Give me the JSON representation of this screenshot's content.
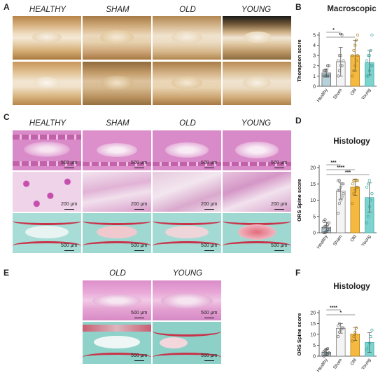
{
  "figure": {
    "panel_labels": {
      "a": "A",
      "b": "B",
      "c": "C",
      "d": "D",
      "e": "E",
      "f": "F"
    },
    "panel_a": {
      "groups": [
        "HEALTHY",
        "SHAM",
        "OLD",
        "YOUNG"
      ]
    },
    "panel_c": {
      "groups": [
        "HEALTHY",
        "SHAM",
        "OLD",
        "YOUNG"
      ],
      "scalebars_row1": [
        "500 μm",
        "500 μm",
        "500 μm",
        "500 μm"
      ],
      "scalebars_row2": [
        "200 μm",
        "200 μm",
        "200 μm",
        "200 μm"
      ],
      "scalebars_row3": [
        "500 μm",
        "500 μm",
        "500 μm",
        "500 μm"
      ]
    },
    "panel_e": {
      "groups": [
        "OLD",
        "YOUNG"
      ],
      "scalebars_row1": [
        "500 μm",
        "500 μm"
      ],
      "scalebars_row2": [
        "500 μm",
        "500 μm"
      ]
    },
    "colors": {
      "healthy": "#a9c9d4",
      "sham": "#f4f4f4",
      "old": "#f5b940",
      "young": "#7fd3cf",
      "he_pink": "#d986c6",
      "safranin_red": "#c8334a",
      "fast_green": "#7ccbc0"
    }
  },
  "chart_data": [
    {
      "type": "bar",
      "title": "Macroscopic",
      "ylabel": "Thompson score",
      "categories": [
        "Healthy",
        "Sham",
        "Old",
        "Young"
      ],
      "values": [
        1.3,
        2.4,
        3.0,
        2.3
      ],
      "errors": [
        0.4,
        1.4,
        1.5,
        1.2
      ],
      "ylim": [
        0,
        5
      ],
      "yticks": [
        0,
        1,
        2,
        3,
        4,
        5
      ],
      "significance": [
        {
          "from": "Healthy",
          "to": "Sham",
          "label": "*"
        },
        {
          "from": "Healthy",
          "to": "Old",
          "label": "**"
        }
      ],
      "points": [
        [
          1,
          1,
          1,
          1,
          1,
          1.5,
          1.5,
          1.5,
          2,
          2
        ],
        [
          1,
          1.5,
          2,
          2,
          2.5,
          2.5,
          3,
          3,
          5
        ],
        [
          1,
          1.5,
          2,
          2.5,
          3,
          3,
          3.5,
          4,
          4.5,
          5
        ],
        [
          1,
          1,
          1.5,
          2,
          2,
          2.5,
          3,
          3,
          3.5,
          5
        ]
      ]
    },
    {
      "type": "bar",
      "title": "Histology",
      "ylabel": "ORS Spine score",
      "categories": [
        "Healthy",
        "Sham",
        "Old",
        "Young"
      ],
      "values": [
        1.7,
        12.8,
        14.0,
        10.8
      ],
      "errors": [
        1.5,
        2.5,
        2.5,
        4.5
      ],
      "ylim": [
        0,
        20
      ],
      "yticks": [
        0,
        5,
        10,
        15,
        20
      ],
      "significance": [
        {
          "from": "Healthy",
          "to": "Sham",
          "label": "***"
        },
        {
          "from": "Healthy",
          "to": "Old",
          "label": "****"
        },
        {
          "from": "Healthy",
          "to": "Young",
          "label": "***"
        }
      ],
      "points": [
        [
          0,
          0,
          0.5,
          1,
          1,
          1.5,
          2,
          2,
          2.5,
          3,
          3.5,
          4
        ],
        [
          6,
          9,
          10,
          11,
          12,
          13,
          13,
          14,
          15,
          15,
          16,
          16
        ],
        [
          9,
          12,
          13,
          14,
          14,
          15,
          16,
          16,
          16,
          16
        ],
        [
          3,
          5,
          8,
          10,
          12,
          14,
          15,
          16
        ]
      ]
    },
    {
      "type": "bar",
      "title": "Histology",
      "ylabel": "ORS Spine score",
      "categories": [
        "Healthy",
        "Sham",
        "Old",
        "Young"
      ],
      "values": [
        1.8,
        12.8,
        10.2,
        6.3
      ],
      "errors": [
        1.5,
        2.2,
        3.0,
        4.5
      ],
      "ylim": [
        0,
        20
      ],
      "yticks": [
        0,
        5,
        10,
        15,
        20
      ],
      "significance": [
        {
          "from": "Healthy",
          "to": "Sham",
          "label": "****"
        },
        {
          "from": "Healthy",
          "to": "Old",
          "label": "*"
        }
      ],
      "points": [
        [
          0,
          0.5,
          1,
          1,
          1.5,
          2,
          2.5,
          3,
          3.5
        ],
        [
          9,
          11,
          12,
          13,
          13,
          14,
          15
        ],
        [
          7,
          9,
          11,
          13
        ],
        [
          3,
          4,
          6,
          9,
          12
        ]
      ]
    }
  ]
}
